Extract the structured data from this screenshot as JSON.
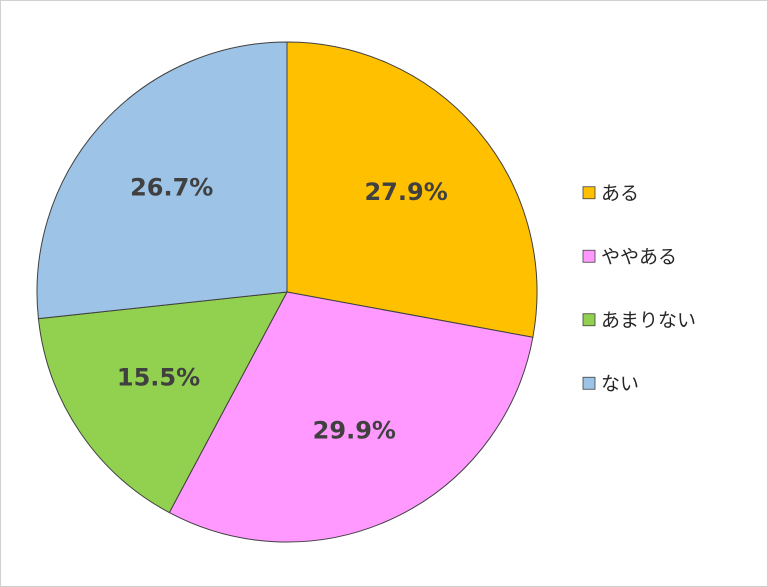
{
  "chart_data": {
    "type": "pie",
    "categories": [
      "ある",
      "ややある",
      "あまりない",
      "ない"
    ],
    "values": [
      27.9,
      29.9,
      15.5,
      26.7
    ],
    "value_labels": [
      "27.9%",
      "29.9%",
      "15.5%",
      "26.7%"
    ],
    "colors": [
      "#ffc000",
      "#ff99ff",
      "#92d050",
      "#9dc3e6"
    ],
    "legend": "right"
  }
}
